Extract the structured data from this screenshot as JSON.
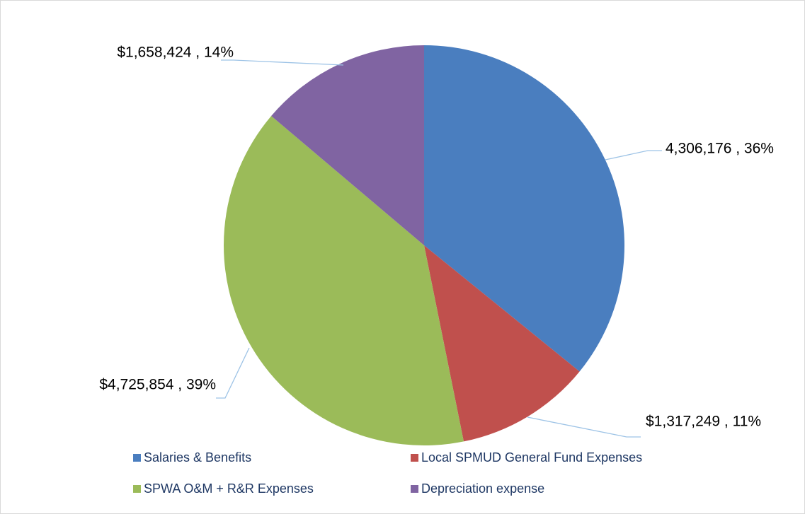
{
  "chart_data": {
    "type": "pie",
    "categories": [
      "Salaries & Benefits",
      "Local SPMUD General Fund Expenses",
      "SPWA O&M + R&R Expenses",
      "Depreciation expense"
    ],
    "values": [
      4306176,
      1317249,
      4725854,
      1658424
    ],
    "value_labels": [
      "4,306,176 , 36%",
      "$1,317,249 , 11%",
      "$4,725,854 , 39%",
      "$1,658,424 , 14%"
    ],
    "colors": [
      "#4a7ebf",
      "#c0504d",
      "#9bbb59",
      "#8064a2"
    ],
    "legend": "bottom"
  }
}
